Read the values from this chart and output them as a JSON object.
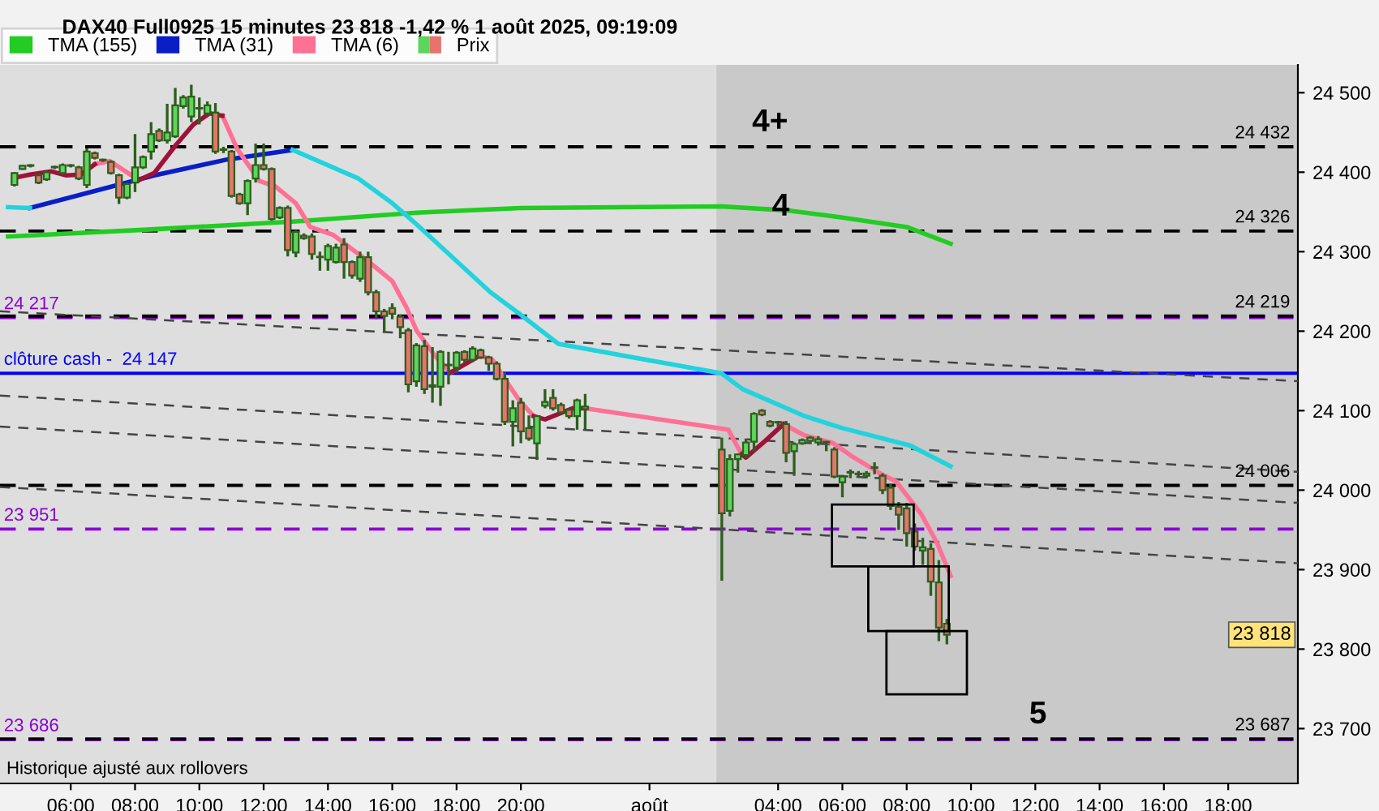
{
  "chart_data": {
    "type": "candlestick",
    "title": "DAX40 Full0925 15 minutes 23 818 -1,42 % 1 août 2025, 09:19:09",
    "xlim": [
      "2025-07-31T03:48",
      "2025-08-01T20:10"
    ],
    "ylim": [
      23631,
      24535
    ],
    "xticks": [
      {
        "value": "2025-07-31T06:00",
        "label": "06:00"
      },
      {
        "value": "2025-07-31T08:00",
        "label": "08:00"
      },
      {
        "value": "2025-07-31T10:00",
        "label": "10:00"
      },
      {
        "value": "2025-07-31T12:00",
        "label": "12:00"
      },
      {
        "value": "2025-07-31T14:00",
        "label": "14:00"
      },
      {
        "value": "2025-07-31T16:00",
        "label": "16:00"
      },
      {
        "value": "2025-07-31T18:00",
        "label": "18:00"
      },
      {
        "value": "2025-07-31T20:00",
        "label": "20:00"
      },
      {
        "value": "2025-08-01T00:00",
        "label": "août"
      },
      {
        "value": "2025-08-01T04:00",
        "label": "04:00"
      },
      {
        "value": "2025-08-01T06:00",
        "label": "06:00"
      },
      {
        "value": "2025-08-01T08:00",
        "label": "08:00"
      },
      {
        "value": "2025-08-01T10:00",
        "label": "10:00"
      },
      {
        "value": "2025-08-01T12:00",
        "label": "12:00"
      },
      {
        "value": "2025-08-01T14:00",
        "label": "14:00"
      },
      {
        "value": "2025-08-01T16:00",
        "label": "16:00"
      },
      {
        "value": "2025-08-01T18:00",
        "label": "18:00"
      }
    ],
    "yticks": [
      {
        "value": 23700,
        "label": "23 700"
      },
      {
        "value": 23800,
        "label": "23 800"
      },
      {
        "value": 23900,
        "label": "23 900"
      },
      {
        "value": 24000,
        "label": "24 000"
      },
      {
        "value": 24100,
        "label": "24 100"
      },
      {
        "value": 24200,
        "label": "24 200"
      },
      {
        "value": 24300,
        "label": "24 300"
      },
      {
        "value": 24400,
        "label": "24 400"
      },
      {
        "value": 24500,
        "label": "24 500"
      }
    ],
    "grid": false,
    "legend": "top left",
    "bands": [
      {
        "axis": "x",
        "from": "2025-08-01T02:05",
        "to": "2025-08-01T20:10",
        "color": "#c9c9c9"
      }
    ],
    "ref_lines": [
      {
        "axis": "y",
        "value": 24217,
        "color": "#8a00d4",
        "line_style": "dashed"
      },
      {
        "axis": "y",
        "value": 23686,
        "color": "#8a00d4",
        "line_style": "dashed"
      },
      {
        "axis": "y",
        "value": 24432,
        "label": "24 432",
        "color": "#000000",
        "line_style": "dashed"
      },
      {
        "axis": "y",
        "value": 24326,
        "label": "24 326",
        "color": "#000000",
        "line_style": "dashed"
      },
      {
        "axis": "y",
        "value": 24219,
        "label": "24 219",
        "color": "#000000",
        "line_style": "dashed"
      },
      {
        "axis": "y",
        "value": 24006,
        "label": "24 006",
        "color": "#000000",
        "line_style": "dashed"
      },
      {
        "axis": "y",
        "value": 23687,
        "label": "23 687",
        "color": "#000000",
        "line_style": "dashed"
      },
      {
        "axis": "y",
        "value": 24147,
        "color": "#0000ff",
        "line_style": "solid"
      },
      {
        "axis": "y",
        "value": 23951,
        "color": "#8a00d4",
        "line_style": "dashed"
      }
    ],
    "annotations": [
      {
        "text": "24 217",
        "x": "2025-07-31T03:48",
        "y": 24217
      },
      {
        "text": "clôture cash -  24 147",
        "x": "2025-07-31T03:48",
        "y": 24147
      },
      {
        "text": "23 951",
        "x": "2025-07-31T03:48",
        "y": 23951
      },
      {
        "text": "23 686",
        "x": "2025-07-31T03:48",
        "y": 23686
      },
      {
        "text": "23 818",
        "x": "2025-08-01T20:10",
        "y": 23818
      },
      {
        "text": "4+",
        "x": "2025-08-01T03:45",
        "y": 24432
      },
      {
        "text": "4",
        "x": "2025-08-01T04:05",
        "y": 24326
      },
      {
        "text": "5",
        "x": "2025-08-01T12:05",
        "y": 23687
      },
      "Historique ajusté aux rollovers"
    ],
    "series": [
      {
        "type": "line",
        "color": "#444444",
        "line_style": "dashed",
        "x": [
          "2025-07-31T03:48",
          "2025-08-01T20:10"
        ],
        "values": [
          24225,
          24137
        ]
      },
      {
        "type": "line",
        "color": "#444444",
        "line_style": "dashed",
        "x": [
          "2025-07-31T03:48",
          "2025-08-01T20:10"
        ],
        "values": [
          24119,
          24023
        ]
      },
      {
        "type": "line",
        "color": "#444444",
        "line_style": "dashed",
        "x": [
          "2025-07-31T03:48",
          "2025-08-01T20:10"
        ],
        "values": [
          24080,
          23984
        ]
      },
      {
        "type": "line",
        "color": "#444444",
        "line_style": "dashed",
        "x": [
          "2025-07-31T03:48",
          "2025-08-01T20:10"
        ],
        "values": [
          24004,
          23908
        ]
      },
      {
        "name": "TMA (155)",
        "type": "line",
        "color": "#22cc22",
        "x": [
          "2025-07-31T04:03",
          "2025-07-31T08:30",
          "2025-07-31T13:00",
          "2025-07-31T16:45",
          "2025-07-31T20:00",
          "2025-08-01T02:15",
          "2025-08-01T04:15",
          "2025-08-01T06:00",
          "2025-08-01T08:00",
          "2025-08-01T09:22"
        ],
        "values": [
          24319,
          24328,
          24338,
          24349,
          24355,
          24357,
          24352,
          24343,
          24331,
          24310
        ]
      },
      {
        "name": "TMA (31)",
        "type": "line",
        "color": "#0a1ec8",
        "x": [
          "2025-07-31T04:44",
          "2025-07-31T08:36",
          "2025-07-31T10:52",
          "2025-07-31T12:54"
        ],
        "values": [
          24355,
          24396,
          24416,
          24428
        ]
      },
      {
        "type": "line",
        "color": "#22d3dd",
        "x": [
          "2025-07-31T04:03",
          "2025-07-31T04:44",
          "2025-07-31T04:52",
          "2025-07-31T12:54",
          "2025-07-31T14:57",
          "2025-07-31T16:00",
          "2025-07-31T16:46",
          "2025-07-31T19:03",
          "2025-07-31T19:57",
          "2025-07-31T21:10",
          "2025-08-01T02:14",
          "2025-08-01T02:54",
          "2025-08-01T04:50",
          "2025-08-01T06:00",
          "2025-08-01T08:07",
          "2025-08-01T09:22"
        ],
        "values": [
          24356,
          24355,
          null,
          24428,
          24392,
          24361,
          24334,
          24249,
          24222,
          24184,
          24147,
          24127,
          24093,
          24078,
          24056,
          24030
        ]
      },
      {
        "name": "TMA (6)",
        "type": "line",
        "color": "#ff7095",
        "x": [
          "2025-07-31T06:45",
          "2025-07-31T07:13",
          "2025-07-31T07:40",
          "2025-07-31T08:07",
          "2025-07-31T08:36",
          "2025-07-31T09:16",
          "2025-07-31T09:49",
          "2025-07-31T10:19",
          "2025-07-31T10:43",
          "2025-07-31T11:10",
          "2025-07-31T11:52",
          "2025-07-31T12:22",
          "2025-07-31T13:00",
          "2025-07-31T13:27",
          "2025-07-31T14:10",
          "2025-07-31T14:57",
          "2025-07-31T15:24",
          "2025-07-31T16:00",
          "2025-07-31T16:27",
          "2025-07-31T16:46",
          "2025-07-31T17:22",
          "2025-07-31T17:49",
          "2025-07-31T18:43",
          "2025-07-31T19:07",
          "2025-07-31T19:30",
          "2025-07-31T19:57",
          "2025-07-31T20:24",
          "2025-07-31T20:45",
          "2025-07-31T21:37",
          "2025-07-31T22:00",
          "2025-08-01T02:27",
          "2025-08-01T02:52",
          "2025-08-01T03:00",
          "2025-08-01T03:36",
          "2025-08-01T04:10",
          "2025-08-01T04:49",
          "2025-08-01T05:43",
          "2025-08-01T06:19",
          "2025-08-01T07:13",
          "2025-08-01T07:40",
          "2025-08-01T08:27",
          "2025-08-01T08:57",
          "2025-08-01T09:22"
        ],
        "values": [
          24410,
          24414,
          24402,
          24390,
          null,
          null,
          null,
          null,
          24471,
          24430,
          24389,
          24382,
          24361,
          24331,
          24321,
          24297,
          24283,
          24263,
          24229,
          24200,
          24167,
          24148,
          24169,
          24164,
          24140,
          24113,
          24093,
          null,
          null,
          24103,
          24076,
          24045,
          null,
          null,
          24083,
          24069,
          24059,
          24042,
          24020,
          24011,
          23970,
          23933,
          23892
        ]
      },
      {
        "type": "line",
        "color": "#a0113a",
        "x": [
          "2025-07-31T04:15",
          "2025-07-31T04:44",
          "2025-07-31T05:24",
          "2025-07-31T05:52",
          "2025-07-31T06:19",
          "2025-07-31T06:45",
          "2025-07-31T07:13",
          "2025-07-31T07:40",
          "2025-07-31T08:07",
          "2025-07-31T08:36",
          "2025-07-31T09:16",
          "2025-07-31T09:49",
          "2025-07-31T10:19",
          "2025-07-31T10:43",
          "2025-07-31T11:10",
          "2025-07-31T11:52",
          "2025-07-31T12:22",
          "2025-07-31T13:00",
          "2025-07-31T13:27",
          "2025-07-31T14:10",
          "2025-07-31T14:57",
          "2025-07-31T15:24",
          "2025-07-31T16:00",
          "2025-07-31T16:27",
          "2025-07-31T16:46",
          "2025-07-31T17:22",
          "2025-07-31T17:49",
          "2025-07-31T18:43",
          "2025-07-31T19:07",
          "2025-07-31T19:30",
          "2025-07-31T19:57",
          "2025-07-31T20:24",
          "2025-07-31T20:45",
          "2025-07-31T21:37",
          "2025-07-31T22:00",
          "2025-08-01T02:27",
          "2025-08-01T02:52",
          "2025-08-01T03:00",
          "2025-08-01T03:36",
          "2025-08-01T04:10"
        ],
        "values": [
          24393,
          24397,
          24401,
          24396,
          24397,
          24410,
          null,
          null,
          24390,
          24399,
          24434,
          24460,
          24474,
          24471,
          null,
          null,
          null,
          null,
          null,
          null,
          null,
          null,
          null,
          null,
          null,
          null,
          24148,
          24169,
          null,
          null,
          null,
          24093,
          24089,
          24103,
          24103,
          null,
          24045,
          24041,
          24062,
          24083
        ]
      },
      {
        "name": "Prix",
        "x": [
          "2025-07-31T04:15",
          "2025-07-31T04:30",
          "2025-07-31T04:45",
          "2025-07-31T05:00",
          "2025-07-31T05:15",
          "2025-07-31T05:30",
          "2025-07-31T05:45",
          "2025-07-31T06:00",
          "2025-07-31T06:15",
          "2025-07-31T06:30",
          "2025-07-31T06:45",
          "2025-07-31T07:00",
          "2025-07-31T07:15",
          "2025-07-31T07:30",
          "2025-07-31T07:45",
          "2025-07-31T08:00",
          "2025-07-31T08:15",
          "2025-07-31T08:30",
          "2025-07-31T08:45",
          "2025-07-31T09:00",
          "2025-07-31T09:15",
          "2025-07-31T09:30",
          "2025-07-31T09:45",
          "2025-07-31T10:00",
          "2025-07-31T10:15",
          "2025-07-31T10:30",
          "2025-07-31T10:45",
          "2025-07-31T11:00",
          "2025-07-31T11:15",
          "2025-07-31T11:30",
          "2025-07-31T11:45",
          "2025-07-31T12:00",
          "2025-07-31T12:15",
          "2025-07-31T12:30",
          "2025-07-31T12:45",
          "2025-07-31T13:00",
          "2025-07-31T13:15",
          "2025-07-31T13:30",
          "2025-07-31T13:45",
          "2025-07-31T14:00",
          "2025-07-31T14:15",
          "2025-07-31T14:30",
          "2025-07-31T14:45",
          "2025-07-31T15:00",
          "2025-07-31T15:15",
          "2025-07-31T15:30",
          "2025-07-31T15:45",
          "2025-07-31T16:00",
          "2025-07-31T16:15",
          "2025-07-31T16:30",
          "2025-07-31T16:45",
          "2025-07-31T17:00",
          "2025-07-31T17:15",
          "2025-07-31T17:30",
          "2025-07-31T17:45",
          "2025-07-31T18:00",
          "2025-07-31T18:15",
          "2025-07-31T18:30",
          "2025-07-31T18:45",
          "2025-07-31T19:00",
          "2025-07-31T19:15",
          "2025-07-31T19:30",
          "2025-07-31T19:45",
          "2025-07-31T20:00",
          "2025-07-31T20:15",
          "2025-07-31T20:30",
          "2025-07-31T20:45",
          "2025-07-31T21:00",
          "2025-07-31T21:15",
          "2025-07-31T21:30",
          "2025-07-31T21:45",
          "2025-07-31T22:00",
          "2025-08-01T02:15",
          "2025-08-01T02:30",
          "2025-08-01T02:45",
          "2025-08-01T03:00",
          "2025-08-01T03:15",
          "2025-08-01T03:30",
          "2025-08-01T03:45",
          "2025-08-01T04:00",
          "2025-08-01T04:15",
          "2025-08-01T04:30",
          "2025-08-01T04:45",
          "2025-08-01T05:00",
          "2025-08-01T05:15",
          "2025-08-01T05:30",
          "2025-08-01T05:45",
          "2025-08-01T06:00",
          "2025-08-01T06:15",
          "2025-08-01T06:30",
          "2025-08-01T06:45",
          "2025-08-01T07:00",
          "2025-08-01T07:15",
          "2025-08-01T07:30",
          "2025-08-01T07:45",
          "2025-08-01T08:00",
          "2025-08-01T08:15",
          "2025-08-01T08:30",
          "2025-08-01T08:45",
          "2025-08-01T09:00",
          "2025-08-01T09:15"
        ],
        "ohlc": [
          [
            24384,
            24400,
            24382,
            24399
          ],
          [
            24404,
            24409,
            24403,
            24408
          ],
          [
            24408,
            24410,
            24406,
            24408
          ],
          [
            24396,
            24398,
            24385,
            24387
          ],
          [
            24391,
            24402,
            24389,
            24400
          ],
          [
            24406,
            24408,
            24404,
            24406
          ],
          [
            24399,
            24411,
            24397,
            24409
          ],
          [
            24408,
            24410,
            24406,
            24408
          ],
          [
            24406,
            24408,
            24390,
            24392
          ],
          [
            24384,
            24430,
            24380,
            24426
          ],
          [
            24424,
            24426,
            24416,
            24418
          ],
          [
            24415,
            24417,
            24413,
            24415
          ],
          [
            24413,
            24415,
            24397,
            24399
          ],
          [
            24396,
            24398,
            24360,
            24368
          ],
          [
            24368,
            24387,
            24366,
            24385
          ],
          [
            24387,
            24448,
            24375,
            24406
          ],
          [
            24406,
            24421,
            24404,
            24419
          ],
          [
            24426,
            24463,
            24416,
            24448
          ],
          [
            24452,
            24455,
            24438,
            24440
          ],
          [
            24440,
            24486,
            24436,
            24450
          ],
          [
            24445,
            24506,
            24443,
            24484
          ],
          [
            24483,
            24497,
            24480,
            24494
          ],
          [
            24470,
            24510,
            24463,
            24495
          ],
          [
            24480,
            24494,
            24460,
            24480
          ],
          [
            24474,
            24489,
            24472,
            24484
          ],
          [
            24475,
            24487,
            24423,
            24426
          ],
          [
            24428,
            24432,
            24424,
            24428
          ],
          [
            24426,
            24428,
            24368,
            24370
          ],
          [
            24372,
            24374,
            24359,
            24361
          ],
          [
            24361,
            24391,
            24346,
            24389
          ],
          [
            24392,
            24436,
            24387,
            24409
          ],
          [
            24409,
            24436,
            24402,
            24404
          ],
          [
            24404,
            24406,
            24339,
            24341
          ],
          [
            24343,
            24357,
            24341,
            24355
          ],
          [
            24355,
            24358,
            24294,
            24302
          ],
          [
            24299,
            24327,
            24293,
            24325
          ],
          [
            24320,
            24323,
            24315,
            24317
          ],
          [
            24319,
            24323,
            24290,
            24297
          ],
          [
            24293,
            24300,
            24276,
            24293
          ],
          [
            24290,
            24310,
            24276,
            24307
          ],
          [
            24287,
            24310,
            24285,
            24305
          ],
          [
            24309,
            24317,
            24266,
            24287
          ],
          [
            24287,
            24289,
            24266,
            24270
          ],
          [
            24266,
            24300,
            24262,
            24293
          ],
          [
            24293,
            24300,
            24245,
            24249
          ],
          [
            24249,
            24252,
            24215,
            24225
          ],
          [
            24225,
            24228,
            24198,
            24219
          ],
          [
            24229,
            24235,
            24215,
            24222
          ],
          [
            24218,
            24221,
            24191,
            24205
          ],
          [
            24201,
            24204,
            24123,
            24133
          ],
          [
            24137,
            24185,
            24130,
            24182
          ],
          [
            24181,
            24189,
            24121,
            24127
          ],
          [
            24130,
            24180,
            24110,
            24132
          ],
          [
            24130,
            24176,
            24106,
            24174
          ],
          [
            24157,
            24174,
            24133,
            24157
          ],
          [
            24154,
            24175,
            24147,
            24173
          ],
          [
            24174,
            24176,
            24160,
            24164
          ],
          [
            24164,
            24181,
            24161,
            24178
          ],
          [
            24176,
            24178,
            24165,
            24167
          ],
          [
            24167,
            24169,
            24150,
            24159
          ],
          [
            24159,
            24162,
            24138,
            24140
          ],
          [
            24140,
            24148,
            24082,
            24086
          ],
          [
            24086,
            24113,
            24055,
            24103
          ],
          [
            24110,
            24116,
            24059,
            24074
          ],
          [
            24078,
            24094,
            24062,
            24065
          ],
          [
            24059,
            24094,
            24038,
            24093
          ],
          [
            24106,
            24127,
            24103,
            24111
          ],
          [
            24116,
            24127,
            24100,
            24103
          ],
          [
            24107,
            24110,
            24095,
            24098
          ],
          [
            24101,
            24103,
            24090,
            24093
          ],
          [
            24093,
            24115,
            24076,
            24113
          ],
          [
            24105,
            24121,
            24076,
            24102
          ],
          [
            24051,
            24066,
            23886,
            23971
          ],
          [
            23974,
            24045,
            23967,
            24039
          ],
          [
            24039,
            24046,
            24022,
            24045
          ],
          [
            24044,
            24065,
            24040,
            24060
          ],
          [
            24061,
            24098,
            24049,
            24096
          ],
          [
            24100,
            24102,
            24093,
            24095
          ],
          [
            24086,
            24088,
            24079,
            24081
          ],
          [
            24085,
            24087,
            24080,
            24085
          ],
          [
            24083,
            24087,
            24035,
            24047
          ],
          [
            24049,
            24060,
            24018,
            24058
          ],
          [
            24059,
            24065,
            24057,
            24063
          ],
          [
            24062,
            24068,
            24060,
            24066
          ],
          [
            24060,
            24068,
            24056,
            24064
          ],
          [
            24060,
            24062,
            24049,
            24060
          ],
          [
            24051,
            24054,
            24015,
            24017
          ],
          [
            24010,
            24019,
            23991,
            24017
          ],
          [
            24022,
            24026,
            24015,
            24022
          ],
          [
            24020,
            24024,
            24016,
            24020
          ],
          [
            24018,
            24024,
            24015,
            24021
          ],
          [
            24028,
            24035,
            24020,
            24028
          ],
          [
            24018,
            24021,
            23995,
            24000
          ],
          [
            24003,
            24008,
            23975,
            23980
          ],
          [
            23979,
            23985,
            23950,
            23969
          ],
          [
            23977,
            23984,
            23929,
            23946
          ],
          [
            23948,
            23958,
            23924,
            23929
          ],
          [
            23924,
            23940,
            23906,
            23928
          ],
          [
            23926,
            23933,
            23867,
            23885
          ],
          [
            23884,
            23912,
            23810,
            23827
          ],
          [
            23832,
            23838,
            23806,
            23818
          ]
        ],
        "colors": [
          "#5cd65c",
          "#5cd65c",
          "#5cd65c",
          "#e8736c",
          "#5cd65c",
          "#5cd65c",
          "#5cd65c",
          "#5cd65c",
          "#e8736c",
          "#5cd65c",
          "#e8736c",
          "#5cd65c",
          "#e8736c",
          "#e8736c",
          "#5cd65c",
          "#5cd65c",
          "#5cd65c",
          "#5cd65c",
          "#e8736c",
          "#5cd65c",
          "#5cd65c",
          "#5cd65c",
          "#5cd65c",
          "#5cd65c",
          "#5cd65c",
          "#e8736c",
          "#5cd65c",
          "#e8736c",
          "#e8736c",
          "#5cd65c",
          "#5cd65c",
          "#e8736c",
          "#e8736c",
          "#5cd65c",
          "#e8736c",
          "#5cd65c",
          "#e8736c",
          "#e8736c",
          "#5cd65c",
          "#5cd65c",
          "#5cd65c",
          "#e8736c",
          "#e8736c",
          "#5cd65c",
          "#e8736c",
          "#e8736c",
          "#e8736c",
          "#e8736c",
          "#e8736c",
          "#e8736c",
          "#5cd65c",
          "#e8736c",
          "#5cd65c",
          "#5cd65c",
          "#5cd65c",
          "#5cd65c",
          "#e8736c",
          "#5cd65c",
          "#e8736c",
          "#e8736c",
          "#e8736c",
          "#e8736c",
          "#5cd65c",
          "#e8736c",
          "#e8736c",
          "#5cd65c",
          "#5cd65c",
          "#e8736c",
          "#e8736c",
          "#e8736c",
          "#5cd65c",
          "#e8736c",
          "#e8736c",
          "#5cd65c",
          "#5cd65c",
          "#5cd65c",
          "#5cd65c",
          "#e8736c",
          "#e8736c",
          "#5cd65c",
          "#e8736c",
          "#5cd65c",
          "#5cd65c",
          "#5cd65c",
          "#5cd65c",
          "#5cd65c",
          "#e8736c",
          "#5cd65c",
          "#5cd65c",
          "#5cd65c",
          "#5cd65c",
          "#5cd65c",
          "#e8736c",
          "#e8736c",
          "#e8736c",
          "#e8736c",
          "#e8736c",
          "#5cd65c",
          "#e8736c",
          "#e8736c",
          "#e8736c"
        ]
      }
    ]
  }
}
